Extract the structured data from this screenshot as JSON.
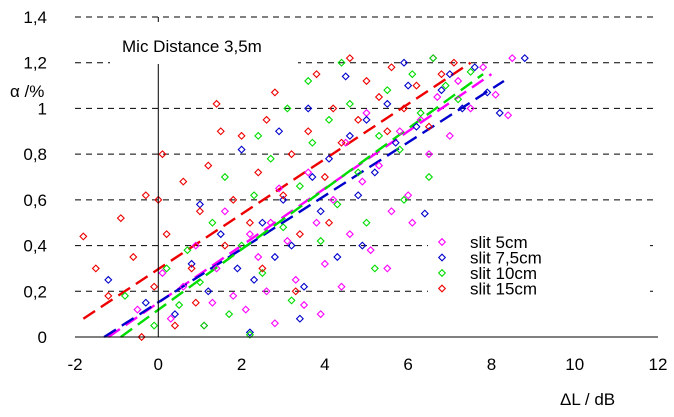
{
  "chart_data": {
    "type": "scatter",
    "title": "",
    "annotation": "Mic Distance 3,5m",
    "xlabel": "ΔL / dB",
    "ylabel": "α /%",
    "xlim": [
      -2,
      12
    ],
    "ylim": [
      0,
      1.4
    ],
    "xticks": [
      -2,
      0,
      2,
      4,
      6,
      8,
      10,
      12
    ],
    "xtick_labels": [
      "-2",
      "0",
      "2",
      "4",
      "6",
      "8",
      "10",
      "12"
    ],
    "yticks": [
      0,
      0.2,
      0.4,
      0.6,
      0.8,
      1.0,
      1.2,
      1.4
    ],
    "ytick_labels": [
      "0",
      "0,2",
      "0,4",
      "0,6",
      "0,8",
      "1",
      "1,2",
      "1,4"
    ],
    "grid": "horizontal dashed",
    "legend_position": "bottom-right",
    "series": [
      {
        "name": "slit 5cm",
        "color": "#ff00ff",
        "marker": "diamond",
        "trend": {
          "x": [
            -1.2,
            8.0
          ],
          "y": [
            0.0,
            1.15
          ]
        },
        "points": [
          [
            -0.5,
            0.12
          ],
          [
            0.3,
            0.08
          ],
          [
            0.6,
            0.22
          ],
          [
            1.1,
            0.05
          ],
          [
            1.4,
            0.3
          ],
          [
            1.8,
            0.18
          ],
          [
            2.1,
            0.12
          ],
          [
            2.4,
            0.35
          ],
          [
            2.6,
            0.2
          ],
          [
            2.8,
            0.06
          ],
          [
            3.1,
            0.42
          ],
          [
            3.3,
            0.25
          ],
          [
            3.5,
            0.14
          ],
          [
            3.8,
            0.5
          ],
          [
            4.0,
            0.32
          ],
          [
            4.2,
            0.6
          ],
          [
            4.4,
            0.22
          ],
          [
            4.6,
            0.45
          ],
          [
            4.9,
            0.68
          ],
          [
            5.1,
            0.38
          ],
          [
            5.3,
            0.75
          ],
          [
            5.6,
            0.55
          ],
          [
            5.8,
            0.9
          ],
          [
            6.0,
            0.62
          ],
          [
            6.3,
            0.95
          ],
          [
            6.5,
            0.8
          ],
          [
            6.7,
            1.05
          ],
          [
            7.0,
            0.88
          ],
          [
            7.2,
            1.12
          ],
          [
            7.5,
            1.0
          ],
          [
            7.8,
            1.18
          ],
          [
            8.1,
            1.06
          ],
          [
            8.4,
            0.97
          ],
          [
            8.5,
            1.22
          ],
          [
            0.9,
            0.4
          ],
          [
            1.6,
            0.55
          ],
          [
            2.9,
            0.65
          ],
          [
            3.6,
            0.72
          ],
          [
            4.5,
            0.85
          ],
          [
            5.0,
            0.98
          ],
          [
            6.6,
            1.22
          ],
          [
            2.2,
            0.45
          ],
          [
            0.1,
            0.28
          ],
          [
            3.9,
            0.1
          ],
          [
            5.5,
            0.3
          ],
          [
            6.1,
            0.5
          ],
          [
            1.3,
            0.15
          ],
          [
            2.7,
            0.5
          ]
        ]
      },
      {
        "name": "slit 7,5cm",
        "color": "#0000cc",
        "marker": "diamond",
        "trend": {
          "x": [
            -1.3,
            8.3
          ],
          "y": [
            0.0,
            1.12
          ]
        },
        "points": [
          [
            -1.2,
            0.25
          ],
          [
            -0.3,
            0.15
          ],
          [
            0.4,
            0.1
          ],
          [
            0.8,
            0.32
          ],
          [
            1.2,
            0.2
          ],
          [
            1.5,
            0.45
          ],
          [
            1.9,
            0.3
          ],
          [
            2.2,
            0.02
          ],
          [
            2.5,
            0.5
          ],
          [
            2.8,
            0.35
          ],
          [
            3.0,
            0.6
          ],
          [
            3.2,
            0.4
          ],
          [
            3.4,
            0.08
          ],
          [
            3.7,
            0.7
          ],
          [
            3.9,
            0.55
          ],
          [
            4.1,
            0.78
          ],
          [
            4.3,
            0.35
          ],
          [
            4.6,
            0.88
          ],
          [
            4.8,
            0.62
          ],
          [
            5.0,
            0.95
          ],
          [
            5.2,
            0.72
          ],
          [
            5.5,
            1.02
          ],
          [
            5.7,
            0.85
          ],
          [
            6.0,
            1.1
          ],
          [
            6.2,
            0.92
          ],
          [
            6.4,
            0.54
          ],
          [
            6.8,
            1.08
          ],
          [
            7.0,
            1.15
          ],
          [
            7.3,
            1.0
          ],
          [
            7.6,
            1.18
          ],
          [
            7.9,
            1.07
          ],
          [
            8.2,
            0.98
          ],
          [
            8.8,
            1.22
          ],
          [
            2.0,
            0.82
          ],
          [
            2.9,
            0.9
          ],
          [
            3.6,
            1.0
          ],
          [
            4.5,
            1.14
          ],
          [
            5.9,
            1.2
          ],
          [
            1.0,
            0.58
          ],
          [
            2.3,
            0.25
          ],
          [
            3.5,
            0.22
          ],
          [
            4.9,
            0.4
          ]
        ]
      },
      {
        "name": "slit 10cm",
        "color": "#00dd00",
        "marker": "diamond",
        "trend": {
          "x": [
            -0.9,
            7.8
          ],
          "y": [
            0.0,
            1.15
          ]
        },
        "points": [
          [
            -0.8,
            0.18
          ],
          [
            -0.1,
            0.05
          ],
          [
            0.5,
            0.14
          ],
          [
            0.7,
            0.38
          ],
          [
            1.0,
            0.24
          ],
          [
            1.3,
            0.5
          ],
          [
            1.7,
            0.1
          ],
          [
            2.0,
            0.4
          ],
          [
            2.3,
            0.62
          ],
          [
            2.5,
            0.28
          ],
          [
            2.7,
            0.78
          ],
          [
            3.0,
            0.48
          ],
          [
            3.2,
            0.16
          ],
          [
            3.4,
            0.66
          ],
          [
            3.7,
            0.85
          ],
          [
            3.9,
            0.42
          ],
          [
            4.1,
            0.95
          ],
          [
            4.3,
            0.58
          ],
          [
            4.6,
            1.02
          ],
          [
            4.8,
            0.72
          ],
          [
            5.0,
            0.5
          ],
          [
            5.3,
            0.88
          ],
          [
            5.5,
            1.08
          ],
          [
            5.8,
            0.82
          ],
          [
            6.1,
            1.15
          ],
          [
            6.3,
            0.98
          ],
          [
            6.6,
            1.22
          ],
          [
            6.9,
            1.1
          ],
          [
            7.2,
            1.04
          ],
          [
            7.5,
            1.16
          ],
          [
            1.6,
            0.7
          ],
          [
            2.4,
            0.88
          ],
          [
            3.1,
            1.0
          ],
          [
            3.6,
            1.12
          ],
          [
            4.4,
            1.2
          ],
          [
            5.2,
            0.3
          ],
          [
            0.2,
            0.3
          ],
          [
            1.1,
            0.05
          ],
          [
            2.2,
            0.01
          ],
          [
            5.9,
            0.6
          ],
          [
            6.5,
            0.7
          ]
        ]
      },
      {
        "name": "slit 15cm",
        "color": "#ee0000",
        "marker": "diamond",
        "trend": {
          "x": [
            -1.8,
            7.5
          ],
          "y": [
            0.08,
            1.2
          ]
        },
        "points": [
          [
            -1.8,
            0.44
          ],
          [
            -1.5,
            0.3
          ],
          [
            -1.2,
            0.18
          ],
          [
            -0.9,
            0.52
          ],
          [
            -0.6,
            0.35
          ],
          [
            -0.3,
            0.62
          ],
          [
            -0.1,
            0.22
          ],
          [
            0.1,
            0.8
          ],
          [
            0.2,
            0.45
          ],
          [
            0.4,
            0.05
          ],
          [
            0.6,
            0.68
          ],
          [
            0.8,
            0.3
          ],
          [
            1.0,
            0.55
          ],
          [
            1.2,
            0.75
          ],
          [
            1.4,
            1.02
          ],
          [
            1.6,
            0.4
          ],
          [
            1.8,
            0.6
          ],
          [
            2.0,
            0.88
          ],
          [
            2.2,
            0.5
          ],
          [
            2.4,
            0.72
          ],
          [
            2.6,
            0.95
          ],
          [
            2.8,
            1.07
          ],
          [
            3.0,
            0.62
          ],
          [
            3.2,
            0.8
          ],
          [
            3.4,
            0.45
          ],
          [
            3.6,
            0.9
          ],
          [
            3.8,
            1.15
          ],
          [
            4.0,
            0.7
          ],
          [
            4.2,
            1.0
          ],
          [
            4.4,
            0.85
          ],
          [
            4.6,
            1.22
          ],
          [
            4.8,
            0.95
          ],
          [
            5.0,
            1.12
          ],
          [
            5.3,
            1.05
          ],
          [
            5.6,
            1.18
          ],
          [
            5.9,
            1.0
          ],
          [
            6.2,
            1.1
          ],
          [
            6.5,
            0.92
          ],
          [
            6.8,
            1.15
          ],
          [
            7.1,
            1.2
          ],
          [
            -0.4,
            0.0
          ],
          [
            0.9,
            0.15
          ],
          [
            2.5,
            0.3
          ],
          [
            3.3,
            0.2
          ],
          [
            4.1,
            0.5
          ],
          [
            1.5,
            0.9
          ],
          [
            0.0,
            0.6
          ],
          [
            5.5,
            0.9
          ]
        ]
      }
    ]
  }
}
